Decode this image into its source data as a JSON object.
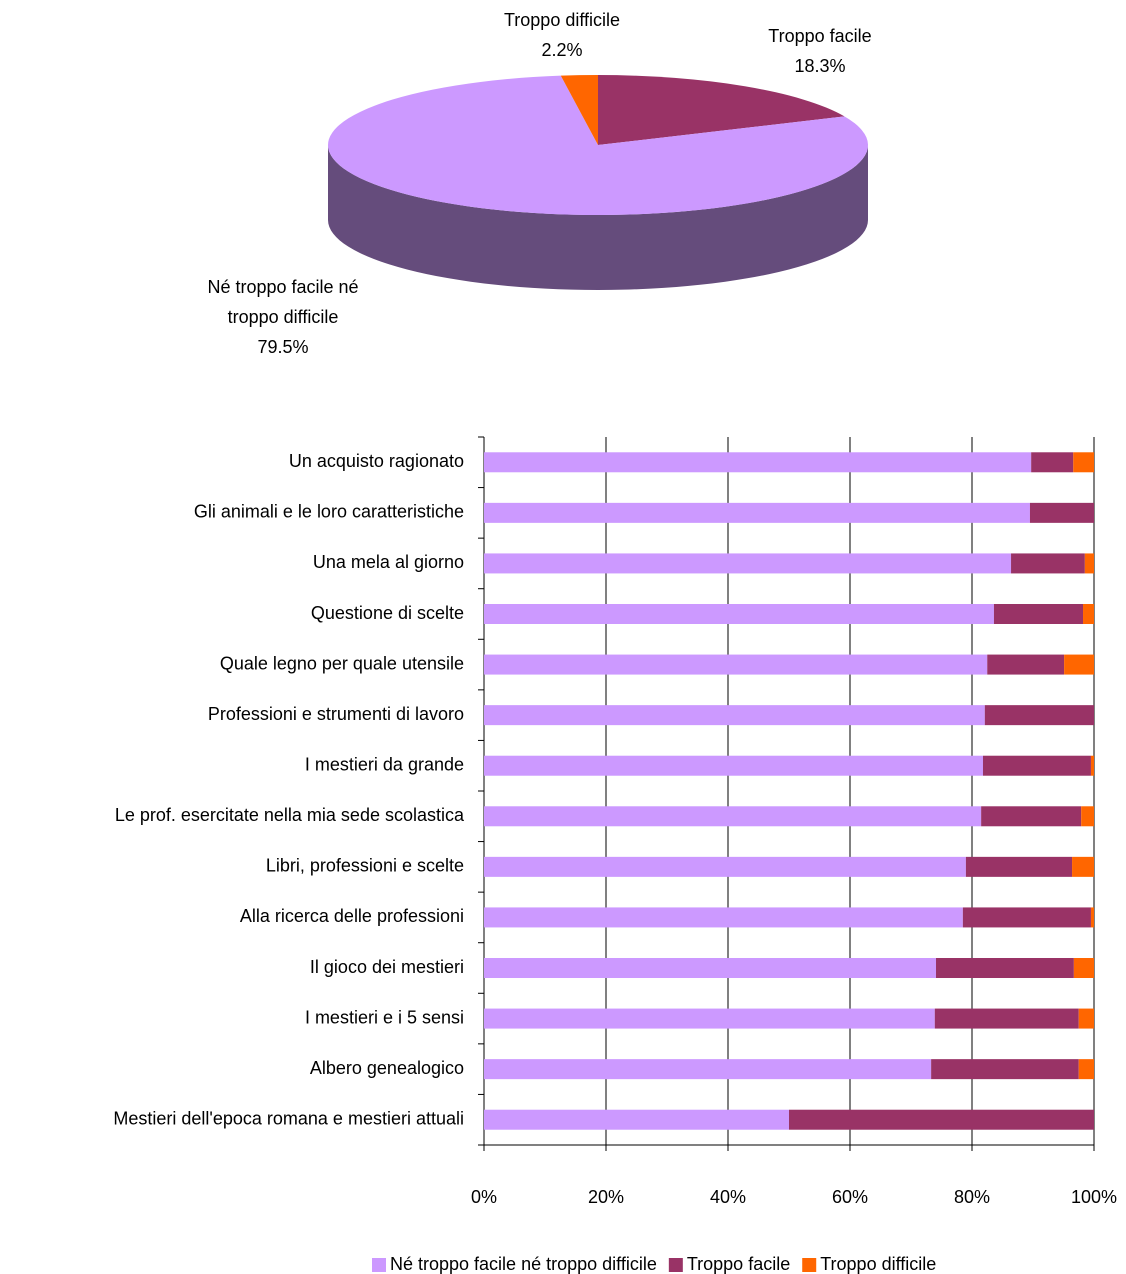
{
  "chart_data": [
    {
      "type": "pie3d",
      "categories": [
        "Troppo facile",
        "Né troppo facile né troppo difficile",
        "Troppo difficile"
      ],
      "values": [
        18.3,
        79.5,
        2.2
      ],
      "value_labels": [
        "18.3%",
        "79.5%",
        "2.2%"
      ],
      "colors": [
        "#993366",
        "#cc99ff",
        "#ff6600"
      ],
      "side_colors": [
        "#5c1f3d",
        "#654c7c",
        "#993d00"
      ]
    },
    {
      "type": "stacked_barh",
      "categories": [
        "Un acquisto ragionato",
        "Gli animali e le loro caratteristiche",
        "Una mela al giorno",
        "Questione di scelte",
        "Quale legno per quale utensile",
        "Professioni e strumenti di lavoro",
        "I mestieri da grande",
        "Le prof. esercitate nella mia sede scolastica",
        "Libri, professioni e scelte",
        "Alla ricerca delle professioni",
        "Il gioco dei mestieri",
        "I mestieri e i 5 sensi",
        "Albero genealogico",
        "Mestieri dell'epoca romana e mestieri attuali"
      ],
      "series": [
        {
          "name": "Né troppo facile né troppo difficile",
          "color": "#cc99ff",
          "values": [
            89.7,
            89.5,
            86.4,
            83.6,
            82.5,
            82.1,
            81.8,
            81.5,
            79.0,
            78.5,
            74.1,
            73.9,
            73.3,
            50.0
          ]
        },
        {
          "name": "Troppo facile",
          "color": "#993366",
          "values": [
            6.9,
            10.5,
            12.1,
            14.6,
            12.6,
            17.9,
            17.7,
            16.4,
            17.4,
            21.0,
            22.6,
            23.6,
            24.2,
            50.0
          ]
        },
        {
          "name": "Troppo difficile",
          "color": "#ff6600",
          "values": [
            3.4,
            0,
            1.5,
            1.8,
            4.9,
            0,
            0.5,
            2.1,
            3.6,
            0.5,
            3.3,
            2.5,
            2.5,
            0
          ]
        }
      ],
      "xlim": [
        0,
        100
      ],
      "xticks": [
        {
          "value": 0,
          "label": "0%"
        },
        {
          "value": 20,
          "label": "20%"
        },
        {
          "value": 40,
          "label": "40%"
        },
        {
          "value": 60,
          "label": "60%"
        },
        {
          "value": 80,
          "label": "80%"
        },
        {
          "value": 100,
          "label": "100%"
        }
      ],
      "grid": true
    }
  ]
}
